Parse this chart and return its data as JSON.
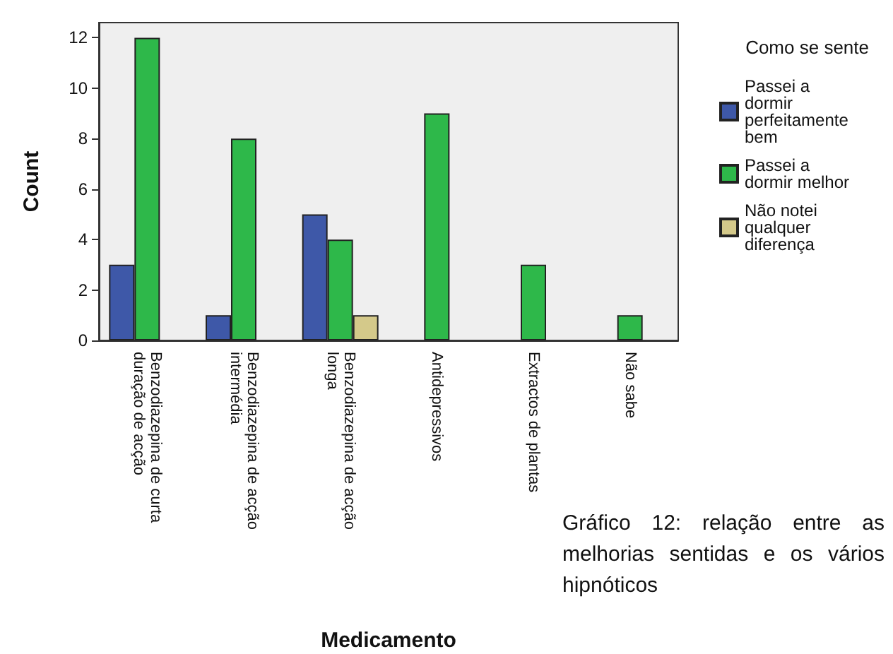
{
  "chart_data": {
    "type": "bar",
    "xlabel": "Medicamento",
    "ylabel": "Count",
    "legend_title": "Como se sente",
    "categories": [
      "Benzodiazepina de curta duração de acção",
      "Benzodiazepina de acção intermédia",
      "Benzodiazepina de acção longa",
      "Antidepressivos",
      "Extractos de plantas",
      "Não sabe"
    ],
    "series": [
      {
        "name": "Passei a dormir perfeitamente bem",
        "color": "#3e58a8",
        "values": [
          3,
          1,
          5,
          null,
          null,
          null
        ]
      },
      {
        "name": "Passei a dormir melhor",
        "color": "#2eb84a",
        "values": [
          12,
          8,
          4,
          9,
          3,
          1
        ]
      },
      {
        "name": "Não notei qualquer diferença",
        "color": "#d4c98a",
        "values": [
          null,
          null,
          1,
          null,
          null,
          null
        ]
      }
    ],
    "ylim": [
      0,
      12.6
    ],
    "yticks": [
      0,
      2,
      4,
      6,
      8,
      10,
      12
    ],
    "grid": false,
    "legend": "right",
    "annotations": [
      "Gráfico 12: relação entre as melhorias sentidas e os vários hipnóticos"
    ]
  }
}
